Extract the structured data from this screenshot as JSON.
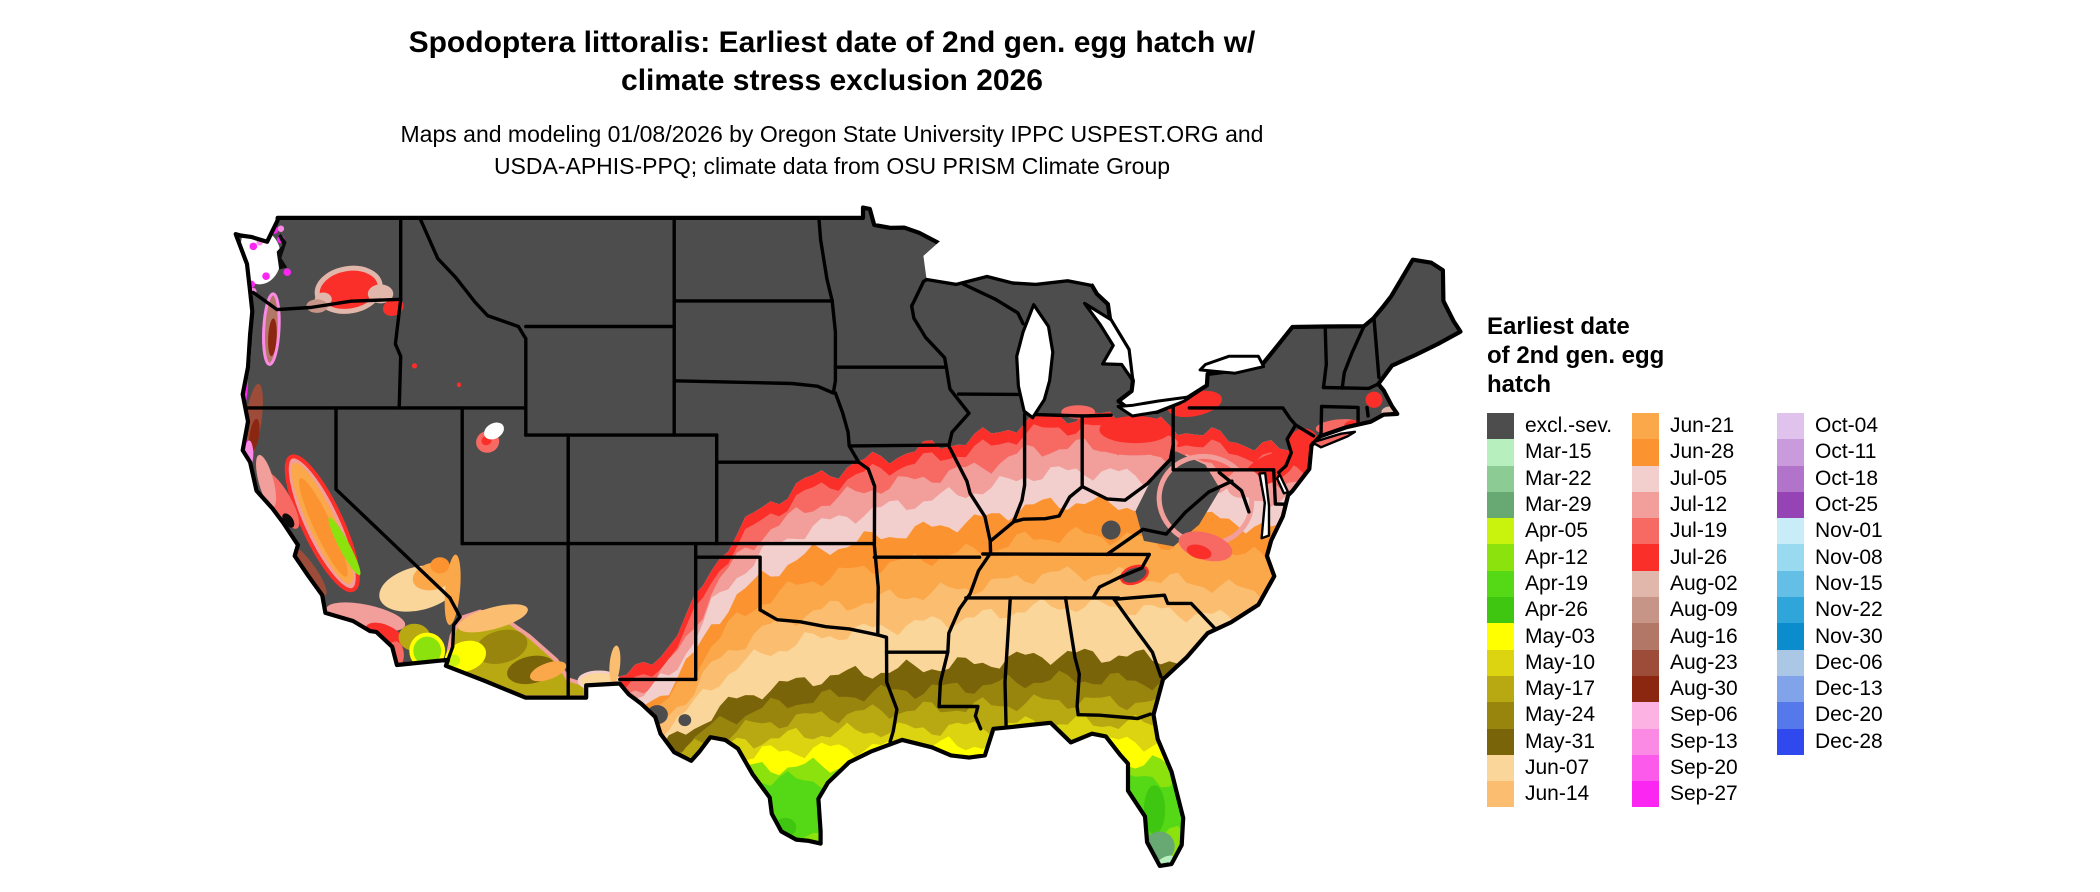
{
  "title": {
    "line1": "Spodoptera littoralis: Earliest date of 2nd gen. egg hatch w/",
    "line2": "climate stress exclusion 2026"
  },
  "subtitle": {
    "line1": "Maps and modeling 01/08/2026 by Oregon State University IPPC USPEST.ORG and",
    "line2": "USDA-APHIS-PPQ; climate data from OSU PRISM Climate Group"
  },
  "legend": {
    "title_lines": [
      "Earliest date",
      "of 2nd gen. egg",
      "hatch"
    ],
    "columns": [
      [
        {
          "label": "excl.-sev.",
          "color": "#4D4D4D"
        },
        {
          "label": "Mar-15",
          "color": "#B7F0BE"
        },
        {
          "label": "Mar-22",
          "color": "#8CCB93"
        },
        {
          "label": "Mar-29",
          "color": "#68A873"
        },
        {
          "label": "Apr-05",
          "color": "#C9F20D"
        },
        {
          "label": "Apr-12",
          "color": "#8CE20D"
        },
        {
          "label": "Apr-19",
          "color": "#55D916"
        },
        {
          "label": "Apr-26",
          "color": "#3EC610"
        },
        {
          "label": "May-03",
          "color": "#FFFF00"
        },
        {
          "label": "May-10",
          "color": "#DCD311"
        },
        {
          "label": "May-17",
          "color": "#B8A812"
        },
        {
          "label": "May-24",
          "color": "#97850E"
        },
        {
          "label": "May-31",
          "color": "#7A6409"
        },
        {
          "label": "Jun-07",
          "color": "#FAD69B"
        },
        {
          "label": "Jun-14",
          "color": "#FBBE71"
        }
      ],
      [
        {
          "label": "Jun-21",
          "color": "#FBA84B"
        },
        {
          "label": "Jun-28",
          "color": "#FB9331"
        },
        {
          "label": "Jul-05",
          "color": "#F2CFCC"
        },
        {
          "label": "Jul-12",
          "color": "#F29E9B"
        },
        {
          "label": "Jul-19",
          "color": "#F76A64"
        },
        {
          "label": "Jul-26",
          "color": "#FB2F29"
        },
        {
          "label": "Aug-02",
          "color": "#E2B7AB"
        },
        {
          "label": "Aug-09",
          "color": "#C79588"
        },
        {
          "label": "Aug-16",
          "color": "#B37767"
        },
        {
          "label": "Aug-23",
          "color": "#9C4C38"
        },
        {
          "label": "Aug-30",
          "color": "#8B2711"
        },
        {
          "label": "Sep-06",
          "color": "#FCB3E3"
        },
        {
          "label": "Sep-13",
          "color": "#FB8AE5"
        },
        {
          "label": "Sep-20",
          "color": "#FB5AEA"
        },
        {
          "label": "Sep-27",
          "color": "#FB26F1"
        }
      ],
      [
        {
          "label": "Oct-04",
          "color": "#DFC3EC"
        },
        {
          "label": "Oct-11",
          "color": "#CA9BDC"
        },
        {
          "label": "Oct-18",
          "color": "#B273CB"
        },
        {
          "label": "Oct-25",
          "color": "#9643B5"
        },
        {
          "label": "Nov-01",
          "color": "#C9EDF8"
        },
        {
          "label": "Nov-08",
          "color": "#99DAF0"
        },
        {
          "label": "Nov-15",
          "color": "#64BFE6"
        },
        {
          "label": "Nov-22",
          "color": "#2FA5DA"
        },
        {
          "label": "Nov-30",
          "color": "#0A8CCD"
        },
        {
          "label": "Dec-06",
          "color": "#AAC7E6"
        },
        {
          "label": "Dec-13",
          "color": "#81A3E9"
        },
        {
          "label": "Dec-20",
          "color": "#5578EB"
        },
        {
          "label": "Dec-28",
          "color": "#2F49EF"
        }
      ]
    ]
  },
  "map": {
    "background": "#FFFFFF",
    "excluded_color": "#4D4D4D",
    "state_border_color": "#000000",
    "water_color": "#FFFFFF"
  }
}
